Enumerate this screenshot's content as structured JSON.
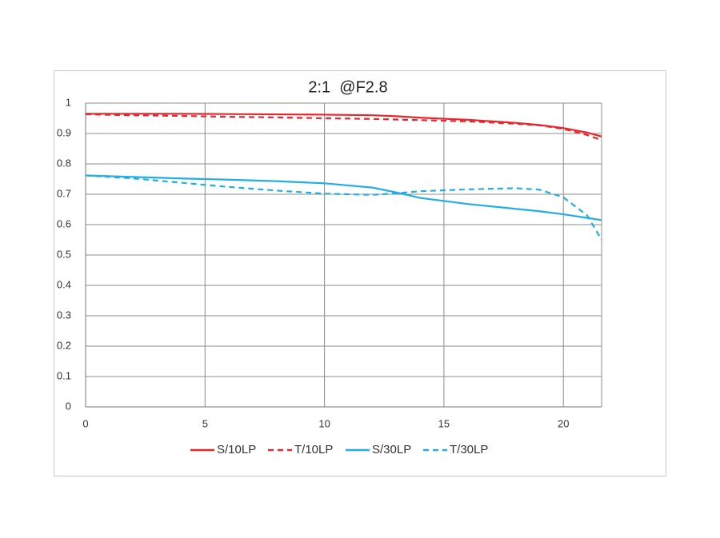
{
  "chart_data": {
    "type": "line",
    "title": "2:1  @F2.8",
    "x": [
      0,
      2,
      4,
      6,
      8,
      10,
      12,
      13,
      14,
      16,
      18,
      19,
      20,
      21,
      21.6
    ],
    "series": [
      {
        "name": "S/10LP",
        "color": "#e8262b",
        "dash": false,
        "values": [
          0.965,
          0.965,
          0.965,
          0.964,
          0.963,
          0.962,
          0.96,
          0.957,
          0.952,
          0.945,
          0.935,
          0.928,
          0.918,
          0.903,
          0.89
        ]
      },
      {
        "name": "T/10LP",
        "color": "#e8262b",
        "dash": true,
        "values": [
          0.963,
          0.96,
          0.958,
          0.955,
          0.953,
          0.95,
          0.948,
          0.946,
          0.944,
          0.94,
          0.932,
          0.927,
          0.915,
          0.895,
          0.878
        ]
      },
      {
        "name": "S/30LP",
        "color": "#22aee5",
        "dash": false,
        "values": [
          0.762,
          0.757,
          0.752,
          0.748,
          0.743,
          0.736,
          0.722,
          0.706,
          0.688,
          0.668,
          0.652,
          0.644,
          0.634,
          0.622,
          0.615
        ]
      },
      {
        "name": "T/30LP",
        "color": "#22aee5",
        "dash": true,
        "values": [
          0.762,
          0.752,
          0.738,
          0.724,
          0.712,
          0.702,
          0.698,
          0.703,
          0.71,
          0.716,
          0.72,
          0.715,
          0.69,
          0.63,
          0.55
        ]
      }
    ],
    "xlim": [
      0,
      21.6
    ],
    "xticks": [
      0,
      5,
      10,
      15,
      20
    ],
    "ylim": [
      0,
      1
    ],
    "yticks": [
      0,
      0.1,
      0.2,
      0.3,
      0.4,
      0.5,
      0.6,
      0.7,
      0.8,
      0.9,
      1
    ],
    "grid": true
  }
}
